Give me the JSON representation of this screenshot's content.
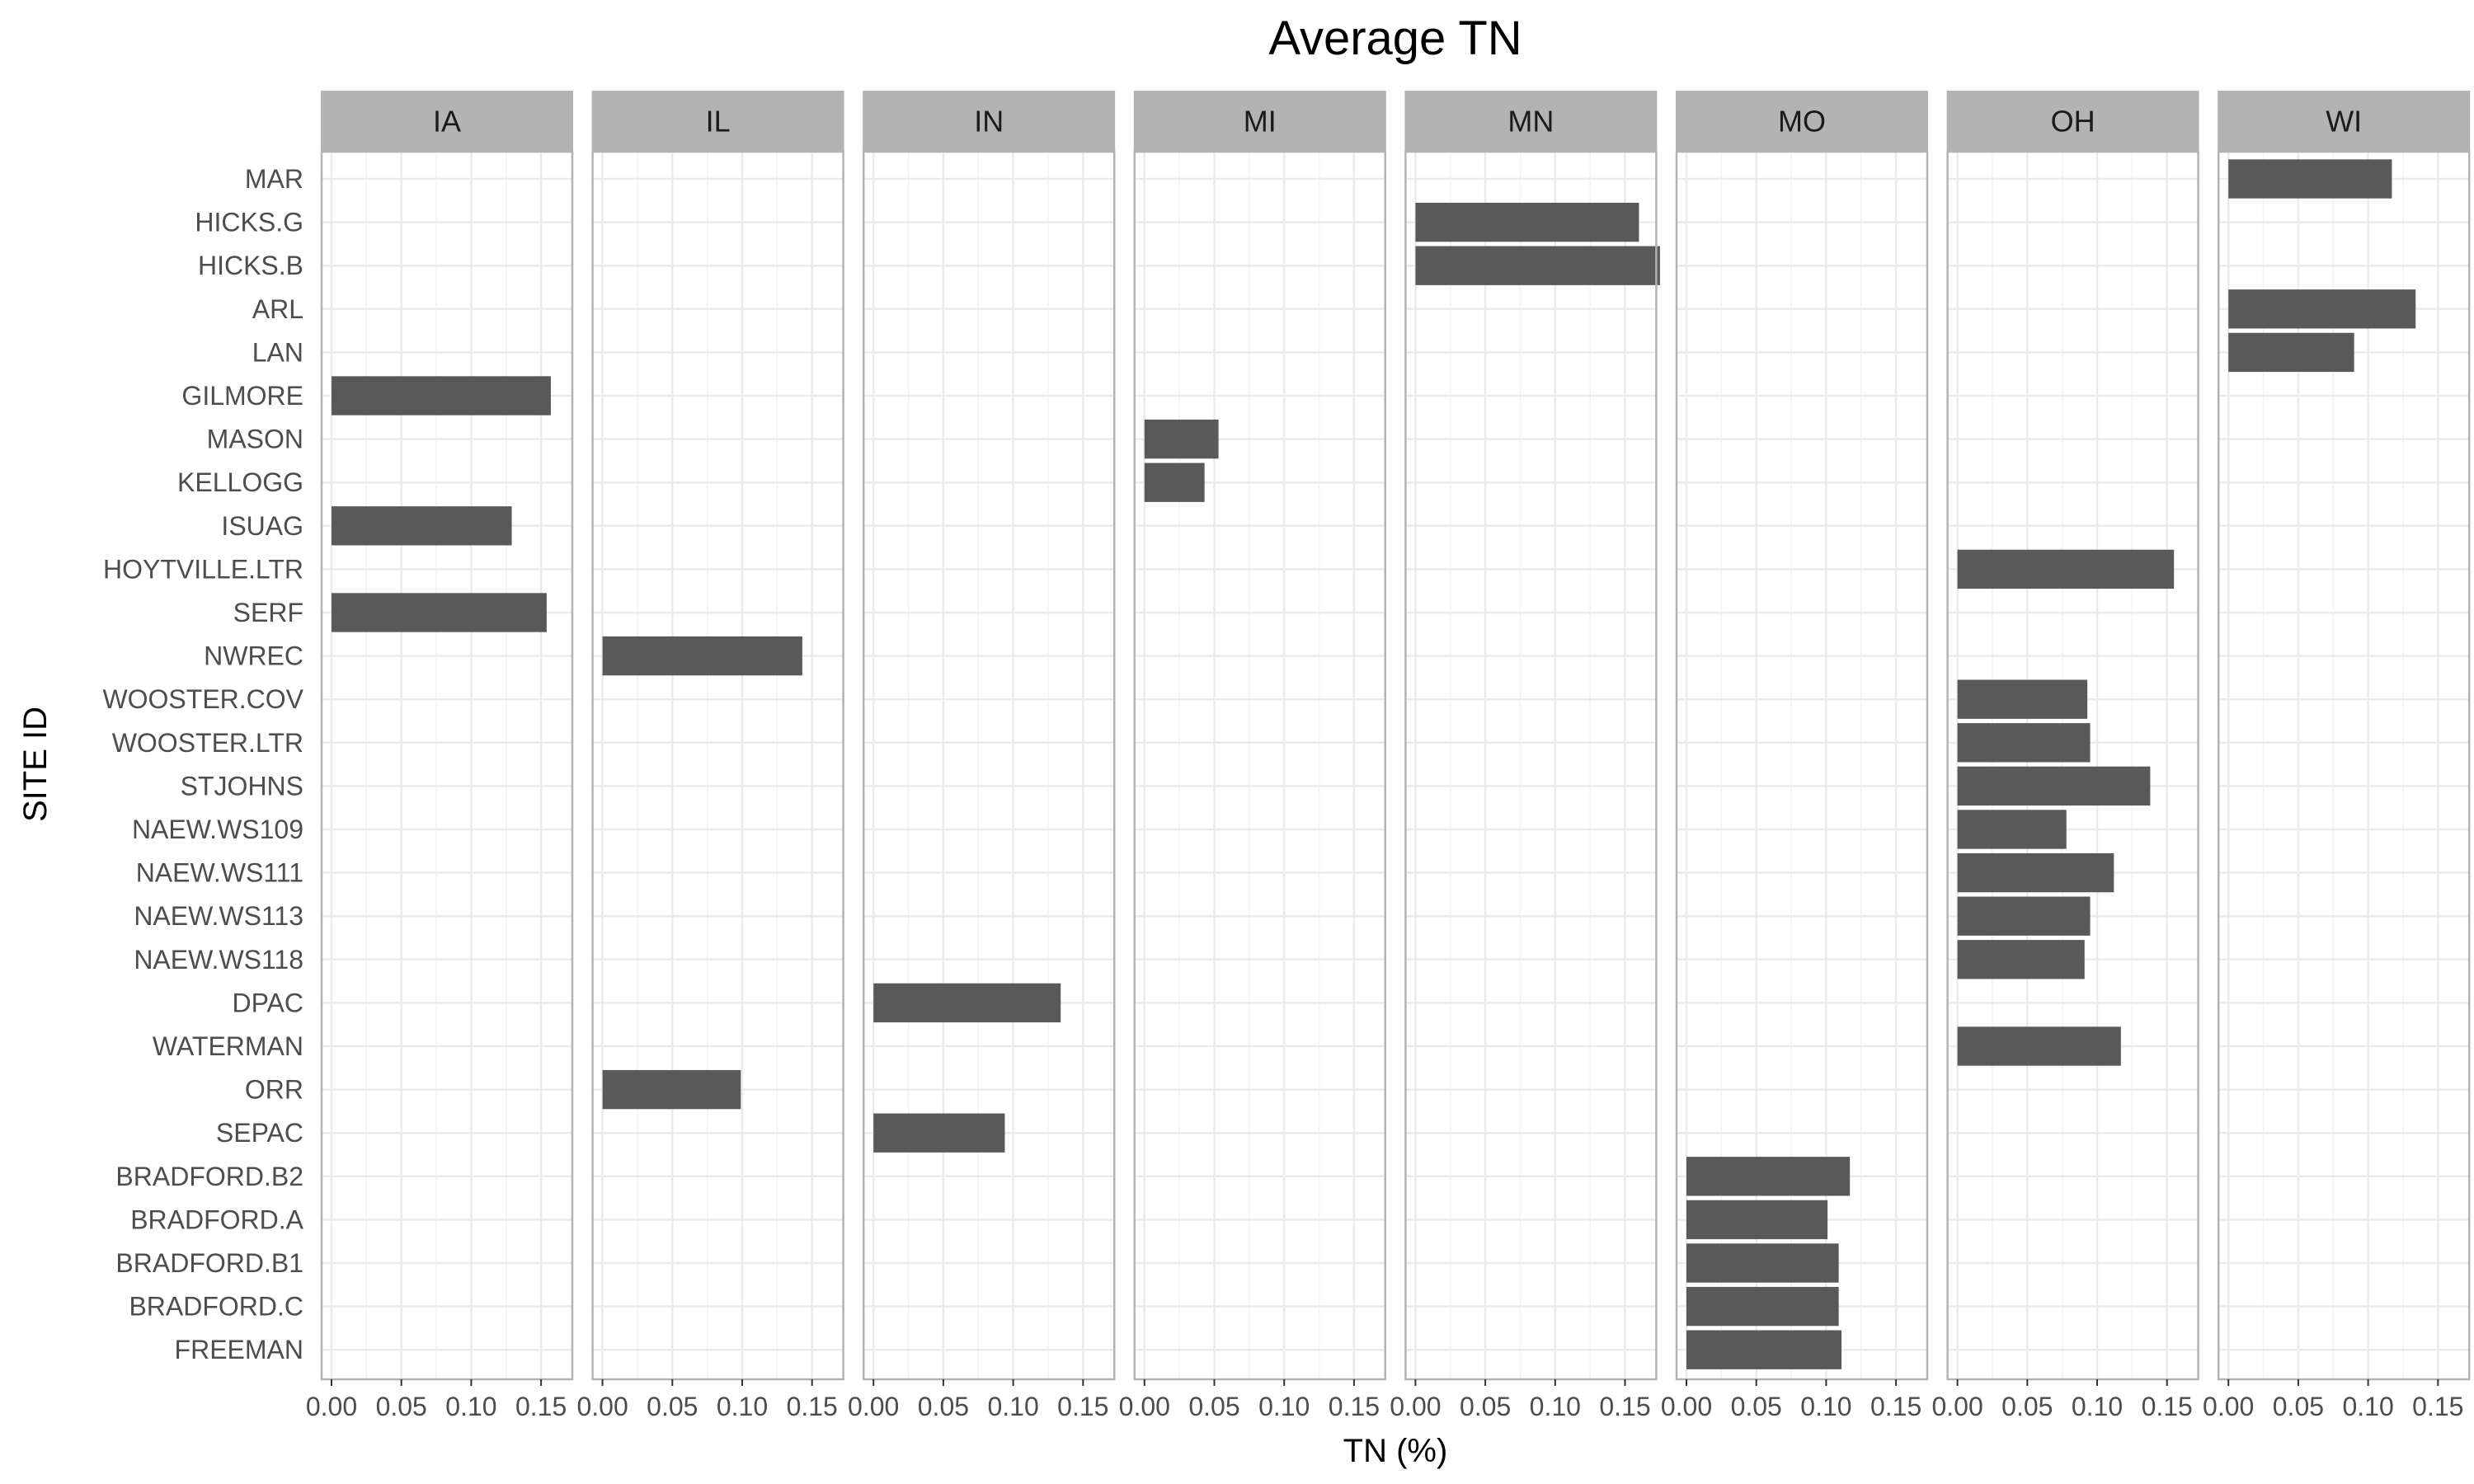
{
  "chart_data": {
    "type": "bar",
    "orientation": "horizontal",
    "faceted": true,
    "title": "Average TN",
    "xlabel": "TN (%)",
    "ylabel": "SITE ID",
    "xlim": [
      0,
      0.17
    ],
    "x_ticks": [
      "0.00",
      "0.05",
      "0.10",
      "0.15"
    ],
    "x_tick_values": [
      0,
      0.05,
      0.1,
      0.15
    ],
    "grid": true,
    "bar_color": "#595959",
    "strip_color": "#b3b3b3",
    "panel_border_color": "#b3b3b3",
    "grid_color": "#ebebeb",
    "categories": [
      "MAR",
      "HICKS.G",
      "HICKS.B",
      "ARL",
      "LAN",
      "GILMORE",
      "MASON",
      "KELLOGG",
      "ISUAG",
      "HOYTVILLE.LTR",
      "SERF",
      "NWREC",
      "WOOSTER.COV",
      "WOOSTER.LTR",
      "STJOHNS",
      "NAEW.WS109",
      "NAEW.WS111",
      "NAEW.WS113",
      "NAEW.WS118",
      "DPAC",
      "WATERMAN",
      "ORR",
      "SEPAC",
      "BRADFORD.B2",
      "BRADFORD.A",
      "BRADFORD.B1",
      "BRADFORD.C",
      "FREEMAN"
    ],
    "facets": [
      {
        "name": "IA",
        "bars": [
          {
            "site": "GILMORE",
            "value": 0.157
          },
          {
            "site": "ISUAG",
            "value": 0.129
          },
          {
            "site": "SERF",
            "value": 0.154
          }
        ]
      },
      {
        "name": "IL",
        "bars": [
          {
            "site": "NWREC",
            "value": 0.143
          },
          {
            "site": "ORR",
            "value": 0.099
          }
        ]
      },
      {
        "name": "IN",
        "bars": [
          {
            "site": "DPAC",
            "value": 0.134
          },
          {
            "site": "SEPAC",
            "value": 0.094
          }
        ]
      },
      {
        "name": "MI",
        "bars": [
          {
            "site": "MASON",
            "value": 0.053
          },
          {
            "site": "KELLOGG",
            "value": 0.043
          }
        ]
      },
      {
        "name": "MN",
        "bars": [
          {
            "site": "HICKS.G",
            "value": 0.16
          },
          {
            "site": "HICKS.B",
            "value": 0.175
          }
        ]
      },
      {
        "name": "MO",
        "bars": [
          {
            "site": "BRADFORD.B2",
            "value": 0.117
          },
          {
            "site": "BRADFORD.A",
            "value": 0.101
          },
          {
            "site": "BRADFORD.B1",
            "value": 0.109
          },
          {
            "site": "BRADFORD.C",
            "value": 0.109
          },
          {
            "site": "FREEMAN",
            "value": 0.111
          }
        ]
      },
      {
        "name": "OH",
        "bars": [
          {
            "site": "HOYTVILLE.LTR",
            "value": 0.155
          },
          {
            "site": "WOOSTER.COV",
            "value": 0.093
          },
          {
            "site": "WOOSTER.LTR",
            "value": 0.095
          },
          {
            "site": "STJOHNS",
            "value": 0.138
          },
          {
            "site": "NAEW.WS109",
            "value": 0.078
          },
          {
            "site": "NAEW.WS111",
            "value": 0.112
          },
          {
            "site": "NAEW.WS113",
            "value": 0.095
          },
          {
            "site": "NAEW.WS118",
            "value": 0.091
          },
          {
            "site": "WATERMAN",
            "value": 0.117
          }
        ]
      },
      {
        "name": "WI",
        "bars": [
          {
            "site": "MAR",
            "value": 0.117
          },
          {
            "site": "ARL",
            "value": 0.134
          },
          {
            "site": "LAN",
            "value": 0.09
          }
        ]
      }
    ]
  }
}
